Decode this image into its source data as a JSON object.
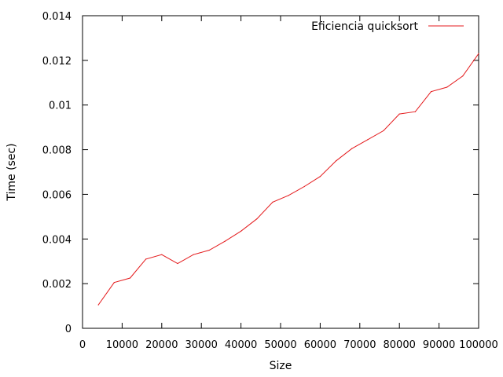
{
  "chart_data": {
    "type": "line",
    "title": "",
    "xlabel": "Size",
    "ylabel": "Time (sec)",
    "xlim": [
      0,
      100000
    ],
    "ylim": [
      0,
      0.014
    ],
    "x_ticks": [
      0,
      10000,
      20000,
      30000,
      40000,
      50000,
      60000,
      70000,
      80000,
      90000,
      100000
    ],
    "x_tick_labels": [
      "0",
      "10000",
      "20000",
      "30000",
      "40000",
      "50000",
      "60000",
      "70000",
      "80000",
      "90000",
      "100000"
    ],
    "y_ticks": [
      0,
      0.002,
      0.004,
      0.006,
      0.008,
      0.01,
      0.012,
      0.014
    ],
    "y_tick_labels": [
      "0",
      "0.002",
      "0.004",
      "0.006",
      "0.008",
      "0.01",
      "0.012",
      "0.014"
    ],
    "grid": false,
    "legend_position": "top-right",
    "series": [
      {
        "name": "Eficiencia quicksort",
        "color": "#e41a1c",
        "x": [
          4000,
          8000,
          12000,
          16000,
          20000,
          24000,
          28000,
          32000,
          36000,
          40000,
          44000,
          48000,
          52000,
          56000,
          60000,
          64000,
          68000,
          72000,
          76000,
          80000,
          84000,
          88000,
          92000,
          96000,
          100000
        ],
        "y": [
          0.00105,
          0.00205,
          0.00225,
          0.0031,
          0.0033,
          0.0029,
          0.0033,
          0.0035,
          0.0039,
          0.00435,
          0.0049,
          0.00565,
          0.00595,
          0.00635,
          0.0068,
          0.0075,
          0.00805,
          0.00845,
          0.00885,
          0.0096,
          0.0097,
          0.0106,
          0.0108,
          0.0113,
          0.0123
        ]
      }
    ]
  }
}
